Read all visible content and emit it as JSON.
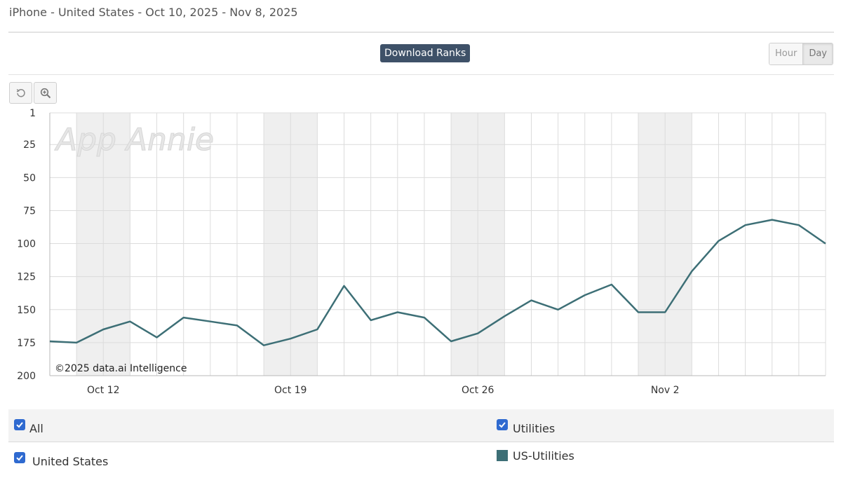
{
  "header": {
    "title": "iPhone - United States - Oct 10, 2025 - Nov 8, 2025"
  },
  "toolbar": {
    "metric_label": "Download Ranks",
    "granularity": [
      {
        "label": "Hour",
        "active": false
      },
      {
        "label": "Day",
        "active": true
      }
    ],
    "reset_icon": "reset-icon",
    "zoom_icon": "zoom-icon"
  },
  "watermark": "App Annie",
  "copyright": "©2025 data.ai Intelligence",
  "chart_data": {
    "type": "line",
    "title": "",
    "xlabel": "",
    "ylabel": "",
    "y_inverted": true,
    "ylim": [
      1,
      200
    ],
    "yticks": [
      1,
      25,
      50,
      75,
      100,
      125,
      150,
      175,
      200
    ],
    "x_start": "2025-10-10",
    "x_end": "2025-11-08",
    "x_tick_labels": [
      {
        "label": "Oct 12",
        "date": "2025-10-12"
      },
      {
        "label": "Oct 19",
        "date": "2025-10-19"
      },
      {
        "label": "Oct 26",
        "date": "2025-10-26"
      },
      {
        "label": "Nov 2",
        "date": "2025-11-02"
      }
    ],
    "weekend_shading": true,
    "grid": true,
    "series": [
      {
        "name": "US-Utilities",
        "color": "#3d6f76",
        "points": [
          {
            "x": "2025-10-10",
            "y": 174
          },
          {
            "x": "2025-10-11",
            "y": 175
          },
          {
            "x": "2025-10-12",
            "y": 165
          },
          {
            "x": "2025-10-13",
            "y": 159
          },
          {
            "x": "2025-10-14",
            "y": 171
          },
          {
            "x": "2025-10-15",
            "y": 156
          },
          {
            "x": "2025-10-16",
            "y": 159
          },
          {
            "x": "2025-10-17",
            "y": 162
          },
          {
            "x": "2025-10-18",
            "y": 177
          },
          {
            "x": "2025-10-19",
            "y": 172
          },
          {
            "x": "2025-10-20",
            "y": 165
          },
          {
            "x": "2025-10-21",
            "y": 132
          },
          {
            "x": "2025-10-22",
            "y": 158
          },
          {
            "x": "2025-10-23",
            "y": 152
          },
          {
            "x": "2025-10-24",
            "y": 156
          },
          {
            "x": "2025-10-25",
            "y": 174
          },
          {
            "x": "2025-10-26",
            "y": 168
          },
          {
            "x": "2025-10-27",
            "y": 155
          },
          {
            "x": "2025-10-28",
            "y": 143
          },
          {
            "x": "2025-10-29",
            "y": 150
          },
          {
            "x": "2025-10-30",
            "y": 139
          },
          {
            "x": "2025-10-31",
            "y": 131
          },
          {
            "x": "2025-11-01",
            "y": 152
          },
          {
            "x": "2025-11-02",
            "y": 152
          },
          {
            "x": "2025-11-03",
            "y": 121
          },
          {
            "x": "2025-11-04",
            "y": 98
          },
          {
            "x": "2025-11-05",
            "y": 86
          },
          {
            "x": "2025-11-06",
            "y": 82
          },
          {
            "x": "2025-11-07",
            "y": 86
          },
          {
            "x": "2025-11-08",
            "y": 100
          }
        ]
      }
    ]
  },
  "legend": {
    "all": {
      "label": "All",
      "checked": true
    },
    "utilities": {
      "label": "Utilities",
      "checked": true
    },
    "country": {
      "label": "United States",
      "checked": true
    },
    "series": {
      "label": "US-Utilities",
      "color": "#3d6f76"
    }
  }
}
